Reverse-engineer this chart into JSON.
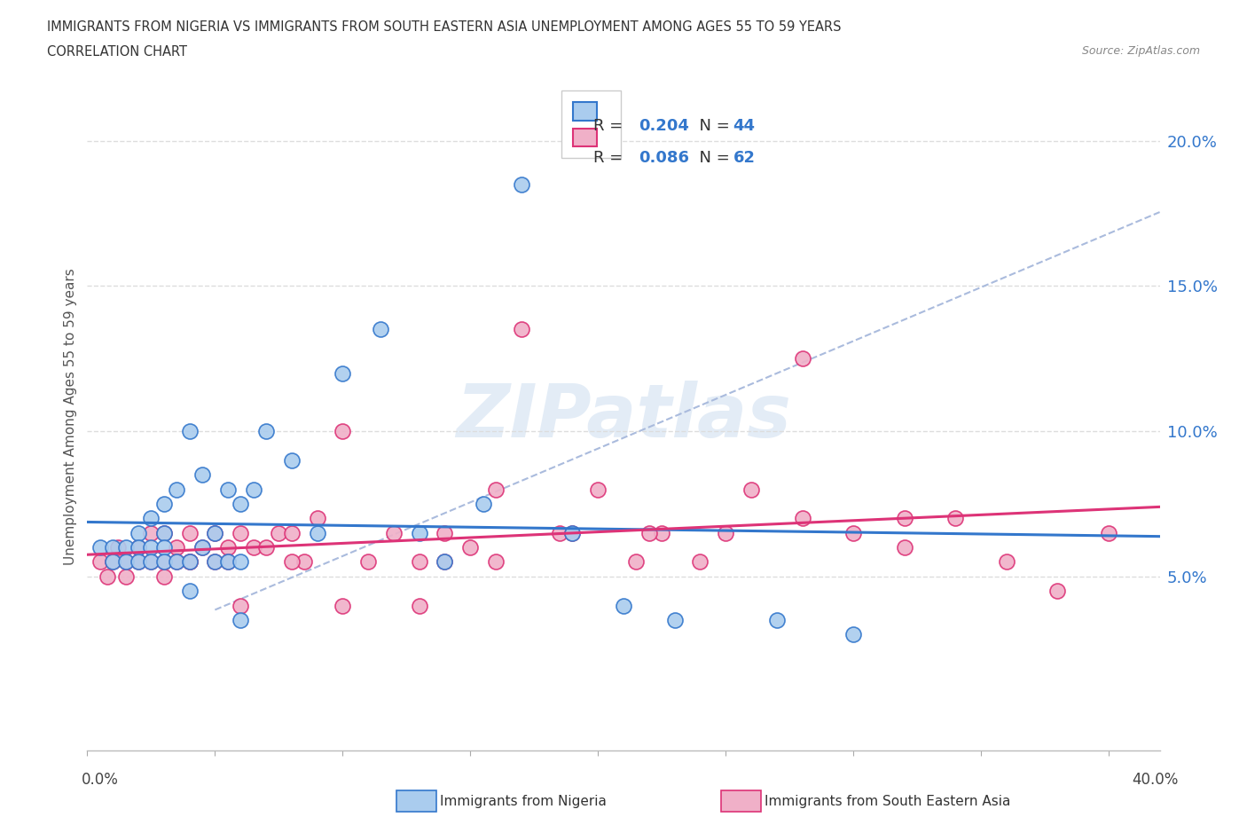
{
  "title_line1": "IMMIGRANTS FROM NIGERIA VS IMMIGRANTS FROM SOUTH EASTERN ASIA UNEMPLOYMENT AMONG AGES 55 TO 59 YEARS",
  "title_line2": "CORRELATION CHART",
  "source": "Source: ZipAtlas.com",
  "ylabel": "Unemployment Among Ages 55 to 59 years",
  "nigeria_color": "#aaccee",
  "sea_color": "#f0b0c8",
  "nigeria_line_color": "#3377cc",
  "sea_line_color": "#dd3377",
  "dash_line_color": "#aabbdd",
  "R_nigeria": "0.204",
  "N_nigeria": "44",
  "R_sea": "0.086",
  "N_sea": "62",
  "xlim": [
    0.0,
    0.42
  ],
  "ylim": [
    -0.01,
    0.22
  ],
  "yticks": [
    0.05,
    0.1,
    0.15,
    0.2
  ],
  "ytick_labels": [
    "5.0%",
    "10.0%",
    "15.0%",
    "20.0%"
  ],
  "xtick_positions": [
    0.0,
    0.05,
    0.1,
    0.15,
    0.2,
    0.25,
    0.3,
    0.35,
    0.4
  ],
  "grid_color": "#dddddd",
  "background_color": "#ffffff",
  "watermark_text": "ZIPatlas",
  "nigeria_x": [
    0.005,
    0.01,
    0.01,
    0.015,
    0.015,
    0.02,
    0.02,
    0.02,
    0.025,
    0.025,
    0.025,
    0.03,
    0.03,
    0.03,
    0.03,
    0.035,
    0.035,
    0.04,
    0.04,
    0.045,
    0.045,
    0.05,
    0.05,
    0.055,
    0.055,
    0.06,
    0.06,
    0.065,
    0.07,
    0.08,
    0.09,
    0.1,
    0.115,
    0.13,
    0.14,
    0.155,
    0.17,
    0.19,
    0.21,
    0.23,
    0.04,
    0.06,
    0.27,
    0.3
  ],
  "nigeria_y": [
    0.06,
    0.06,
    0.055,
    0.06,
    0.055,
    0.065,
    0.06,
    0.055,
    0.07,
    0.06,
    0.055,
    0.075,
    0.065,
    0.06,
    0.055,
    0.08,
    0.055,
    0.1,
    0.055,
    0.085,
    0.06,
    0.065,
    0.055,
    0.08,
    0.055,
    0.075,
    0.055,
    0.08,
    0.1,
    0.09,
    0.065,
    0.12,
    0.135,
    0.065,
    0.055,
    0.075,
    0.185,
    0.065,
    0.04,
    0.035,
    0.045,
    0.035,
    0.035,
    0.03
  ],
  "sea_x": [
    0.005,
    0.008,
    0.01,
    0.012,
    0.015,
    0.015,
    0.02,
    0.02,
    0.025,
    0.025,
    0.03,
    0.03,
    0.03,
    0.035,
    0.035,
    0.04,
    0.04,
    0.04,
    0.045,
    0.05,
    0.05,
    0.055,
    0.055,
    0.06,
    0.065,
    0.07,
    0.075,
    0.08,
    0.085,
    0.09,
    0.1,
    0.11,
    0.12,
    0.13,
    0.14,
    0.15,
    0.16,
    0.17,
    0.185,
    0.2,
    0.215,
    0.225,
    0.24,
    0.26,
    0.28,
    0.3,
    0.32,
    0.34,
    0.36,
    0.38,
    0.25,
    0.28,
    0.32,
    0.22,
    0.19,
    0.16,
    0.13,
    0.1,
    0.08,
    0.06,
    0.14,
    0.4
  ],
  "sea_y": [
    0.055,
    0.05,
    0.055,
    0.06,
    0.05,
    0.055,
    0.06,
    0.055,
    0.065,
    0.055,
    0.05,
    0.065,
    0.055,
    0.06,
    0.055,
    0.055,
    0.065,
    0.055,
    0.06,
    0.065,
    0.055,
    0.06,
    0.055,
    0.065,
    0.06,
    0.06,
    0.065,
    0.065,
    0.055,
    0.07,
    0.1,
    0.055,
    0.065,
    0.055,
    0.055,
    0.06,
    0.055,
    0.135,
    0.065,
    0.08,
    0.055,
    0.065,
    0.055,
    0.08,
    0.07,
    0.065,
    0.06,
    0.07,
    0.055,
    0.045,
    0.065,
    0.125,
    0.07,
    0.065,
    0.065,
    0.08,
    0.04,
    0.04,
    0.055,
    0.04,
    0.065,
    0.065
  ]
}
